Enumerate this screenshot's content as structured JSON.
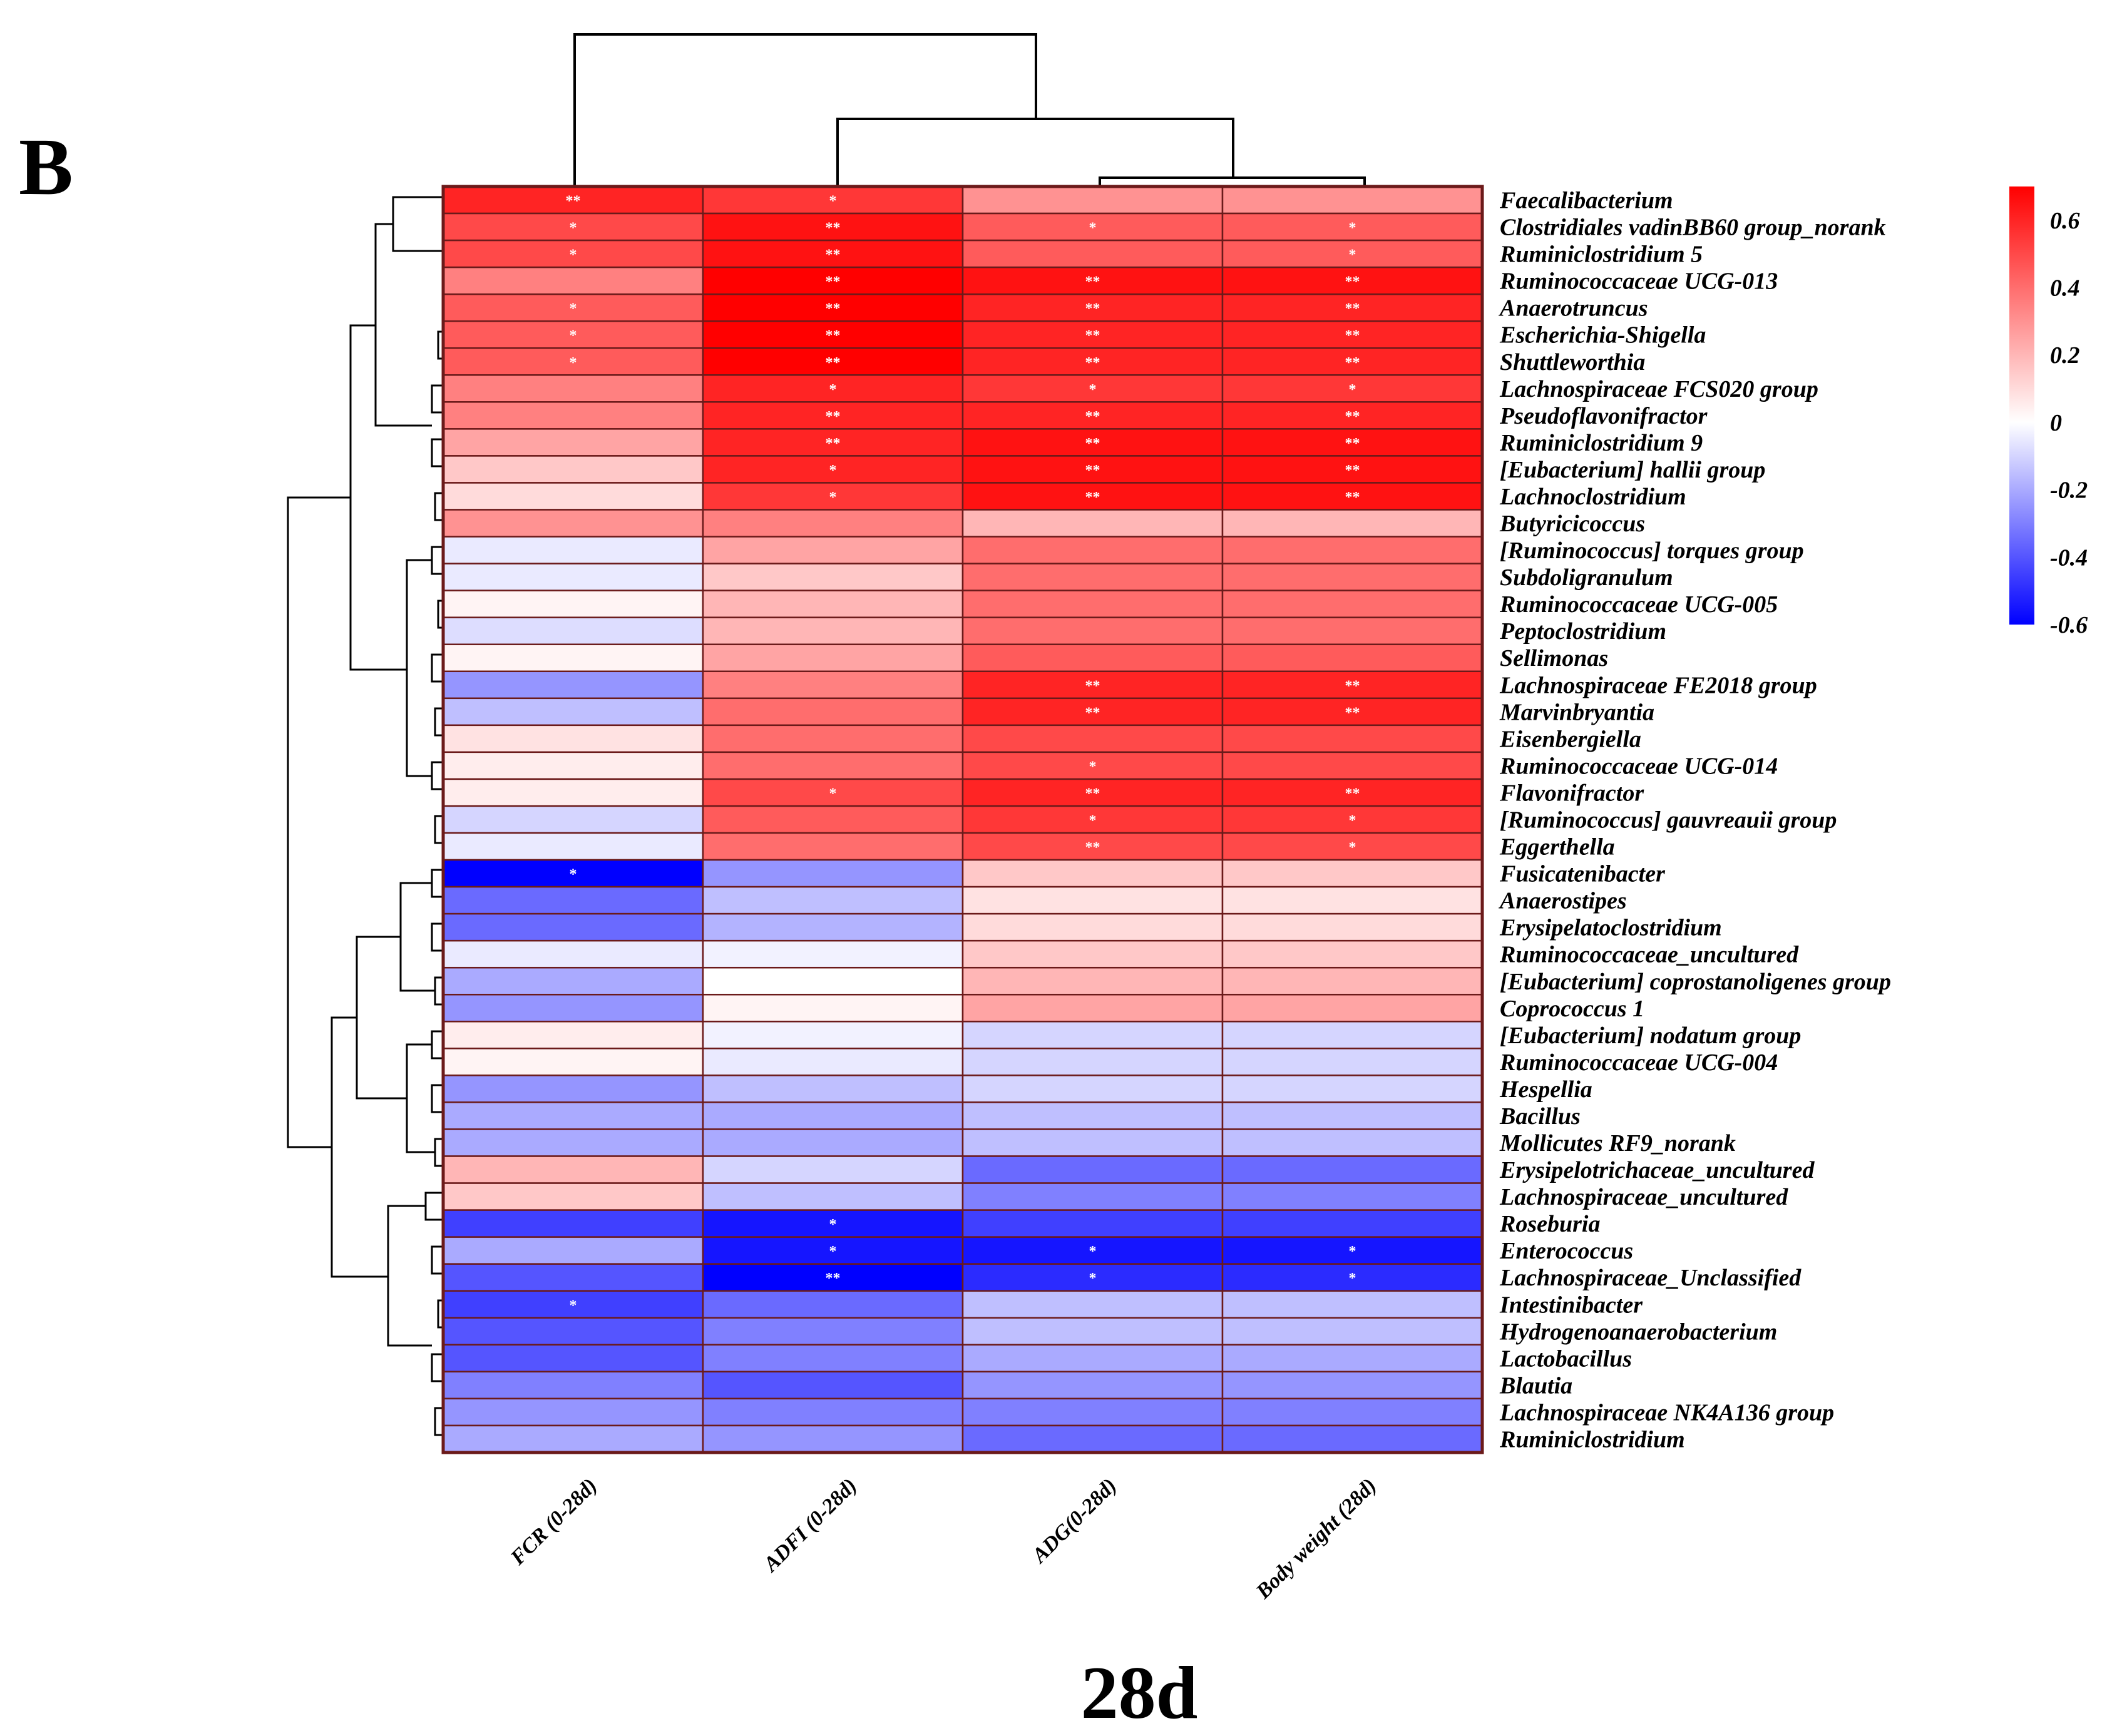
{
  "panel_label": "B",
  "caption": "28d",
  "chart_data": {
    "type": "heatmap",
    "title": "28d",
    "columns": [
      "FCR (0-28d)",
      "ADFI (0-28d)",
      "ADG(0-28d)",
      "Body weight (28d)"
    ],
    "rows": [
      "Faecalibacterium",
      "Clostridiales vadinBB60 group_norank",
      "Ruminiclostridium 5",
      "Ruminococcaceae UCG-013",
      "Anaerotruncus",
      "Escherichia-Shigella",
      "Shuttleworthia",
      "Lachnospiraceae FCS020 group",
      "Pseudoflavonifractor",
      "Ruminiclostridium 9",
      "[Eubacterium] hallii group",
      "Lachnoclostridium",
      "Butyricicoccus",
      "[Ruminococcus] torques group",
      "Subdoligranulum",
      "Ruminococcaceae UCG-005",
      "Peptoclostridium",
      "Sellimonas",
      "Lachnospiraceae FE2018 group",
      "Marvinbryantia",
      "Eisenbergiella",
      "Ruminococcaceae UCG-014",
      "Flavonifractor",
      "[Ruminococcus] gauvreauii group",
      "Eggerthella",
      "Fusicatenibacter",
      "Anaerostipes",
      "Erysipelatoclostridium",
      "Ruminococcaceae_uncultured",
      "[Eubacterium] coprostanoligenes group",
      "Coprococcus 1",
      "[Eubacterium] nodatum group",
      "Ruminococcaceae UCG-004",
      "Hespellia",
      "Bacillus",
      "Mollicutes RF9_norank",
      "Erysipelotrichaceae_uncultured",
      "Lachnospiraceae_uncultured",
      "Roseburia",
      "Enterococcus",
      "Lachnospiraceae_Unclassified",
      "Intestinibacter",
      "Hydrogenoanaerobacterium",
      "Lactobacillus",
      "Blautia",
      "Lachnospiraceae NK4A136 group",
      "Ruminiclostridium"
    ],
    "values": [
      [
        0.6,
        0.55,
        0.3,
        0.3
      ],
      [
        0.5,
        0.65,
        0.45,
        0.45
      ],
      [
        0.5,
        0.65,
        0.45,
        0.45
      ],
      [
        0.35,
        0.7,
        0.65,
        0.65
      ],
      [
        0.45,
        0.7,
        0.6,
        0.6
      ],
      [
        0.45,
        0.7,
        0.6,
        0.6
      ],
      [
        0.45,
        0.7,
        0.6,
        0.6
      ],
      [
        0.35,
        0.6,
        0.55,
        0.55
      ],
      [
        0.35,
        0.6,
        0.6,
        0.6
      ],
      [
        0.25,
        0.6,
        0.65,
        0.65
      ],
      [
        0.15,
        0.6,
        0.65,
        0.65
      ],
      [
        0.1,
        0.55,
        0.65,
        0.65
      ],
      [
        0.3,
        0.35,
        0.2,
        0.2
      ],
      [
        -0.05,
        0.25,
        0.4,
        0.4
      ],
      [
        -0.05,
        0.15,
        0.4,
        0.4
      ],
      [
        0.03,
        0.2,
        0.4,
        0.4
      ],
      [
        -0.08,
        0.2,
        0.4,
        0.4
      ],
      [
        0.03,
        0.25,
        0.45,
        0.45
      ],
      [
        -0.25,
        0.35,
        0.6,
        0.6
      ],
      [
        -0.15,
        0.4,
        0.6,
        0.6
      ],
      [
        0.08,
        0.4,
        0.5,
        0.5
      ],
      [
        0.05,
        0.4,
        0.5,
        0.5
      ],
      [
        0.05,
        0.5,
        0.6,
        0.6
      ],
      [
        -0.1,
        0.45,
        0.55,
        0.55
      ],
      [
        -0.05,
        0.4,
        0.5,
        0.5
      ],
      [
        -0.6,
        -0.25,
        0.15,
        0.15
      ],
      [
        -0.35,
        -0.15,
        0.08,
        0.08
      ],
      [
        -0.35,
        -0.18,
        0.1,
        0.1
      ],
      [
        -0.05,
        -0.03,
        0.15,
        0.15
      ],
      [
        -0.2,
        0.0,
        0.2,
        0.2
      ],
      [
        -0.25,
        0.03,
        0.25,
        0.25
      ],
      [
        0.05,
        -0.03,
        -0.1,
        -0.1
      ],
      [
        0.03,
        -0.05,
        -0.1,
        -0.1
      ],
      [
        -0.25,
        -0.15,
        -0.1,
        -0.1
      ],
      [
        -0.2,
        -0.2,
        -0.15,
        -0.15
      ],
      [
        -0.2,
        -0.2,
        -0.15,
        -0.15
      ],
      [
        0.2,
        -0.1,
        -0.35,
        -0.35
      ],
      [
        0.15,
        -0.15,
        -0.3,
        -0.3
      ],
      [
        -0.45,
        -0.55,
        -0.45,
        -0.45
      ],
      [
        -0.2,
        -0.55,
        -0.55,
        -0.55
      ],
      [
        -0.4,
        -0.6,
        -0.5,
        -0.5
      ],
      [
        -0.45,
        -0.35,
        -0.15,
        -0.15
      ],
      [
        -0.4,
        -0.3,
        -0.15,
        -0.15
      ],
      [
        -0.4,
        -0.3,
        -0.2,
        -0.2
      ],
      [
        -0.3,
        -0.4,
        -0.25,
        -0.25
      ],
      [
        -0.25,
        -0.3,
        -0.3,
        -0.3
      ],
      [
        -0.2,
        -0.25,
        -0.35,
        -0.35
      ]
    ],
    "significance": [
      [
        "**",
        "*",
        "",
        ""
      ],
      [
        "*",
        "**",
        "*",
        "*"
      ],
      [
        "*",
        "**",
        "",
        "*"
      ],
      [
        "",
        "**",
        "**",
        "**"
      ],
      [
        "*",
        "**",
        "**",
        "**"
      ],
      [
        "*",
        "**",
        "**",
        "**"
      ],
      [
        "*",
        "**",
        "**",
        "**"
      ],
      [
        "",
        "*",
        "*",
        "*"
      ],
      [
        "",
        "**",
        "**",
        "**"
      ],
      [
        "",
        "**",
        "**",
        "**"
      ],
      [
        "",
        "*",
        "**",
        "**"
      ],
      [
        "",
        "*",
        "**",
        "**"
      ],
      [
        "",
        "",
        "",
        ""
      ],
      [
        "",
        "",
        "",
        ""
      ],
      [
        "",
        "",
        "",
        ""
      ],
      [
        "",
        "",
        "",
        ""
      ],
      [
        "",
        "",
        "",
        ""
      ],
      [
        "",
        "",
        "",
        ""
      ],
      [
        "",
        "",
        "**",
        "**"
      ],
      [
        "",
        "",
        "**",
        "**"
      ],
      [
        "",
        "",
        "",
        ""
      ],
      [
        "",
        "",
        "*",
        ""
      ],
      [
        "",
        "*",
        "**",
        "**"
      ],
      [
        "",
        "",
        "*",
        "*"
      ],
      [
        "",
        "",
        "**",
        "*"
      ],
      [
        "*",
        "",
        "",
        ""
      ],
      [
        "",
        "",
        "",
        ""
      ],
      [
        "",
        "",
        "",
        ""
      ],
      [
        "",
        "",
        "",
        ""
      ],
      [
        "",
        "",
        "",
        ""
      ],
      [
        "",
        "",
        "",
        ""
      ],
      [
        "",
        "",
        "",
        ""
      ],
      [
        "",
        "",
        "",
        ""
      ],
      [
        "",
        "",
        "",
        ""
      ],
      [
        "",
        "",
        "",
        ""
      ],
      [
        "",
        "",
        "",
        ""
      ],
      [
        "",
        "",
        "",
        ""
      ],
      [
        "",
        "",
        "",
        ""
      ],
      [
        "",
        "*",
        "",
        ""
      ],
      [
        "",
        "*",
        "*",
        "*"
      ],
      [
        "",
        "**",
        "*",
        "*"
      ],
      [
        "*",
        "",
        "",
        ""
      ],
      [
        "",
        "",
        "",
        ""
      ],
      [
        "",
        "",
        "",
        ""
      ],
      [
        "",
        "",
        "",
        ""
      ],
      [
        "",
        "",
        "",
        ""
      ],
      [
        "",
        "",
        "",
        ""
      ]
    ],
    "color_scale": {
      "min": -0.6,
      "max": 0.7,
      "low_color": "#0000ff",
      "mid_color": "#ffffff",
      "high_color": "#ff0000",
      "ticks": [
        0.6,
        0.4,
        0.2,
        0,
        -0.2,
        -0.4,
        -0.6
      ],
      "tick_labels": [
        "0.6",
        "0.4",
        "0.2",
        "0",
        "-0.2",
        "-0.4",
        "-0.6"
      ]
    },
    "legend_position": "top-right",
    "cell_border_color": "#6b1a1a"
  }
}
